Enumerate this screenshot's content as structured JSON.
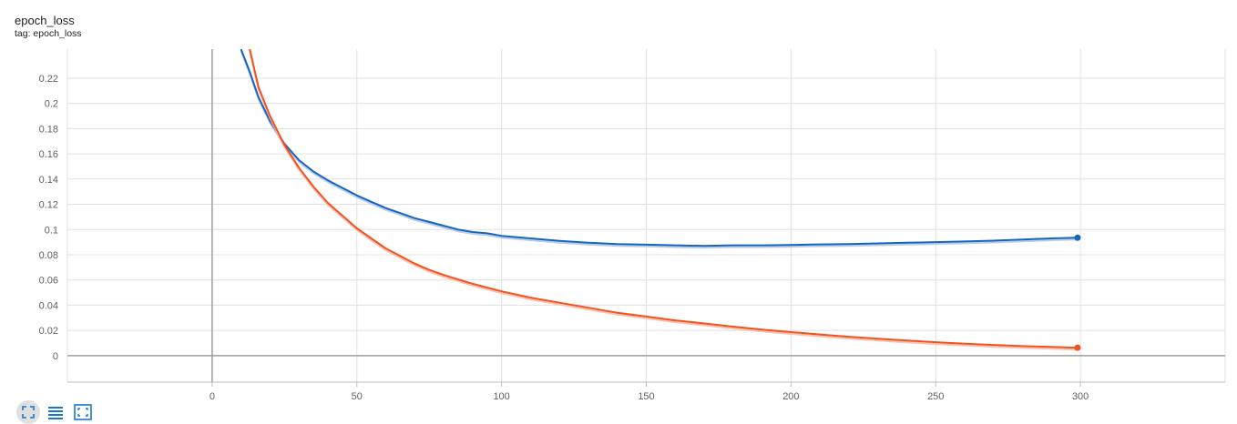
{
  "card": {
    "title": "epoch_loss",
    "subtitle": "tag: epoch_loss"
  },
  "colors": {
    "series_blue": "#1565c0",
    "series_orange": "#f4511e",
    "series_blue_raw": "#bbcde6",
    "series_orange_raw": "#f8c2b0",
    "grid": "#e0e0e0",
    "axis": "#9e9e9e",
    "tick_text": "#616161",
    "toolbar_icon": "#1976d2"
  },
  "toolbar": {
    "buttons": [
      {
        "icon": "fit-domain-icon",
        "active": true
      },
      {
        "icon": "log-scale-list-icon",
        "active": false
      },
      {
        "icon": "toggle-fullscreen-icon",
        "active": false
      }
    ]
  },
  "chart_data": {
    "type": "line",
    "title": "epoch_loss",
    "xlabel": "",
    "ylabel": "",
    "xlim": [
      -50,
      350
    ],
    "ylim": [
      -0.021,
      0.243
    ],
    "xticks": [
      0,
      50,
      100,
      150,
      200,
      250,
      300
    ],
    "yticks": [
      0,
      0.02,
      0.04,
      0.06,
      0.08,
      0.1,
      0.12,
      0.14,
      0.16,
      0.18,
      0.2,
      0.22
    ],
    "ytick_labels": [
      "0",
      "0.02",
      "0.04",
      "0.06",
      "0.08",
      "0.1",
      "0.12",
      "0.14",
      "0.16",
      "0.18",
      "0.2",
      "0.22"
    ],
    "grid": true,
    "series": [
      {
        "color": "#1565c0",
        "x": [
          10,
          13,
          16,
          20,
          25,
          30,
          35,
          40,
          45,
          50,
          55,
          60,
          65,
          70,
          75,
          80,
          85,
          90,
          95,
          100,
          110,
          120,
          130,
          140,
          150,
          160,
          170,
          180,
          190,
          200,
          210,
          220,
          230,
          240,
          250,
          260,
          270,
          280,
          290,
          299
        ],
        "y": [
          0.243,
          0.225,
          0.205,
          0.186,
          0.168,
          0.155,
          0.146,
          0.139,
          0.133,
          0.127,
          0.122,
          0.117,
          0.113,
          0.109,
          0.106,
          0.103,
          0.1,
          0.098,
          0.097,
          0.095,
          0.093,
          0.091,
          0.0895,
          0.0885,
          0.088,
          0.0875,
          0.087,
          0.0875,
          0.0875,
          0.0878,
          0.0882,
          0.0885,
          0.089,
          0.0895,
          0.09,
          0.0905,
          0.0912,
          0.092,
          0.093,
          0.0935
        ]
      },
      {
        "color": "#f4511e",
        "x": [
          13,
          16,
          20,
          25,
          30,
          35,
          40,
          45,
          50,
          55,
          60,
          65,
          70,
          75,
          80,
          90,
          100,
          110,
          120,
          130,
          140,
          150,
          160,
          170,
          180,
          190,
          200,
          210,
          220,
          230,
          240,
          250,
          260,
          270,
          280,
          290,
          299
        ],
        "y": [
          0.243,
          0.213,
          0.19,
          0.167,
          0.149,
          0.134,
          0.121,
          0.111,
          0.101,
          0.093,
          0.085,
          0.079,
          0.073,
          0.068,
          0.064,
          0.057,
          0.051,
          0.046,
          0.042,
          0.038,
          0.034,
          0.031,
          0.028,
          0.0255,
          0.023,
          0.0207,
          0.0187,
          0.0168,
          0.015,
          0.0135,
          0.012,
          0.0107,
          0.0095,
          0.0085,
          0.0076,
          0.0069,
          0.0063
        ]
      }
    ]
  }
}
